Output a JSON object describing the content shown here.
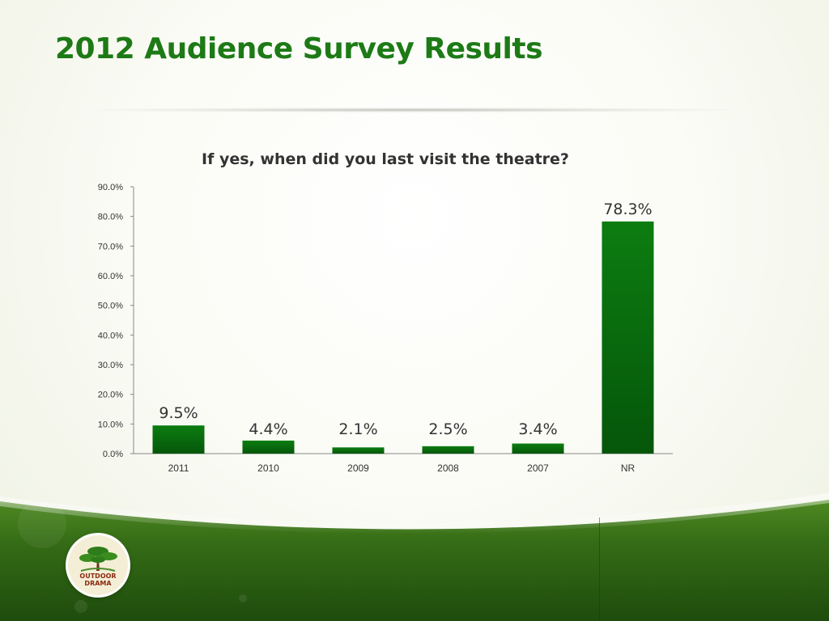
{
  "slide": {
    "title": "2012 Audience Survey Results",
    "logo_text_top": "OUTDOOR",
    "logo_text_bottom": "DRAMA"
  },
  "colors": {
    "title": "#1d7a16",
    "bar_top": "#0c7d10",
    "bar_bottom": "#05560a",
    "band_dark": "#1e4c0d",
    "band_light": "#4f8a22"
  },
  "icons": {
    "logo": "tree-icon"
  },
  "chart_data": {
    "type": "bar",
    "title": "If yes, when did you last visit the theatre?",
    "categories": [
      "2011",
      "2010",
      "2009",
      "2008",
      "2007",
      "NR"
    ],
    "values": [
      9.5,
      4.4,
      2.1,
      2.5,
      3.4,
      78.3
    ],
    "data_labels": [
      "9.5%",
      "4.4%",
      "2.1%",
      "2.5%",
      "3.4%",
      "78.3%"
    ],
    "yticks": [
      "0.0%",
      "10.0%",
      "20.0%",
      "30.0%",
      "40.0%",
      "50.0%",
      "60.0%",
      "70.0%",
      "80.0%",
      "90.0%"
    ],
    "ylim": [
      0,
      90
    ],
    "xlabel": "",
    "ylabel": "",
    "grid": false,
    "legend": "none"
  }
}
